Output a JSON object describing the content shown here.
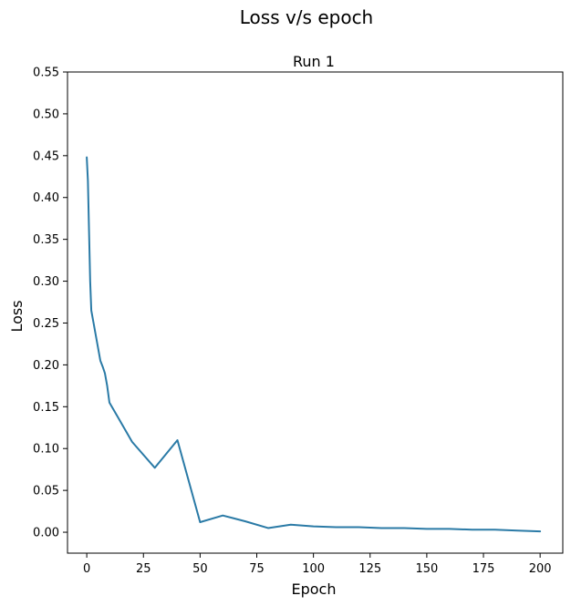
{
  "figure": {
    "suptitle": "Loss v/s epoch"
  },
  "chart_data": {
    "type": "line",
    "title": "Run 1",
    "xlabel": "Epoch",
    "ylabel": "Loss",
    "xlim": [
      -8.5,
      210
    ],
    "ylim": [
      -0.025,
      0.55
    ],
    "xticks": [
      0,
      25,
      50,
      75,
      100,
      125,
      150,
      175,
      200
    ],
    "yticks": [
      0.0,
      0.05,
      0.1,
      0.15,
      0.2,
      0.25,
      0.3,
      0.35,
      0.4,
      0.45,
      0.5,
      0.55
    ],
    "ytick_labels": [
      "0.00",
      "0.05",
      "0.10",
      "0.15",
      "0.20",
      "0.25",
      "0.30",
      "0.35",
      "0.40",
      "0.45",
      "0.50",
      "0.55"
    ],
    "xtick_labels": [
      "0",
      "25",
      "50",
      "75",
      "100",
      "125",
      "150",
      "175",
      "200"
    ],
    "grid": false,
    "series": [
      {
        "color": "#2a7aa6",
        "x": [
          0,
          0.5,
          1,
          1.5,
          2,
          3,
          4,
          5,
          6,
          7,
          8,
          9,
          10,
          20,
          30,
          40,
          50,
          60,
          70,
          80,
          90,
          100,
          110,
          120,
          130,
          140,
          150,
          160,
          170,
          180,
          190,
          200
        ],
        "y": [
          0.448,
          0.42,
          0.36,
          0.3,
          0.265,
          0.25,
          0.235,
          0.22,
          0.205,
          0.198,
          0.19,
          0.175,
          0.155,
          0.108,
          0.077,
          0.11,
          0.012,
          0.02,
          0.013,
          0.005,
          0.009,
          0.007,
          0.006,
          0.006,
          0.005,
          0.005,
          0.004,
          0.004,
          0.003,
          0.003,
          0.002,
          0.001
        ]
      }
    ]
  }
}
